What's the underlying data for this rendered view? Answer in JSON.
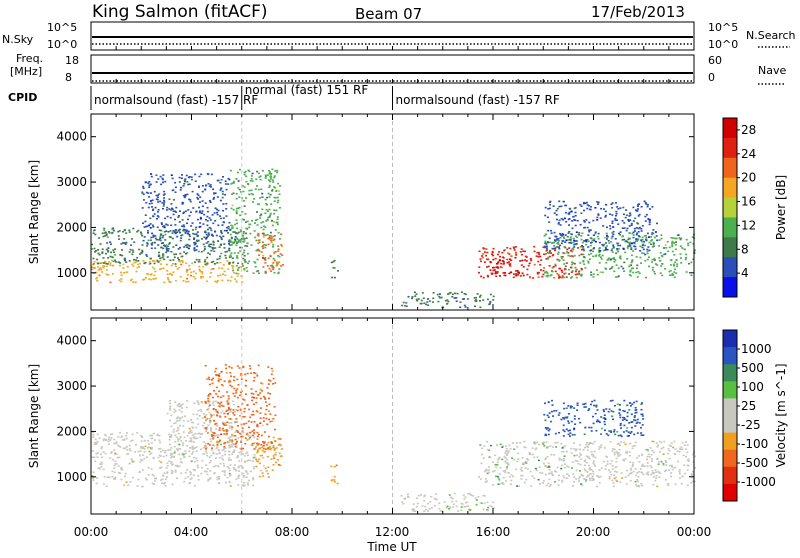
{
  "header": {
    "station": "King Salmon (fitACF)",
    "beam": "Beam 07",
    "date": "17/Feb/2013"
  },
  "nsky_panel": {
    "left_label": "N.Sky",
    "right_label": "N.Search",
    "left_ticks": [
      "10^5",
      "10^0"
    ],
    "right_ticks": [
      "10^5",
      "10^0"
    ]
  },
  "freq_panel": {
    "left_label_1": "Freq.",
    "left_label_2": "[MHz]",
    "right_label": "Nave",
    "left_ticks": [
      "18",
      "8"
    ],
    "right_ticks": [
      "60",
      "0"
    ]
  },
  "cpid": {
    "label": "CPID",
    "segments": [
      {
        "start_hour": 0,
        "end_hour": 6,
        "text": "normalsound (fast) -157 RF"
      },
      {
        "start_hour": 6,
        "end_hour": 12,
        "text": "normal (fast) 151 RF"
      },
      {
        "start_hour": 12,
        "end_hour": 24,
        "text": "normalsound (fast) -157 RF"
      }
    ]
  },
  "x_axis": {
    "label": "Time UT",
    "ticks": [
      "00:00",
      "04:00",
      "08:00",
      "12:00",
      "16:00",
      "20:00",
      "00:00"
    ],
    "range_hours": [
      0,
      24
    ]
  },
  "colors": {
    "power": [
      "#0a10e8",
      "#2a4fb8",
      "#3f7a4a",
      "#4caf50",
      "#b5d23a",
      "#f5a623",
      "#f0641e",
      "#e02010",
      "#d00000"
    ],
    "velocity": [
      "#1a2fb0",
      "#2a55c0",
      "#3a8a5a",
      "#58c040",
      "#c8c8c0",
      "#c8c8c0",
      "#f0a020",
      "#f06820",
      "#e03010",
      "#e00000"
    ]
  },
  "chart_data": [
    {
      "type": "heatmap",
      "title": "",
      "ylabel": "Slant Range [km]",
      "xlabel": "",
      "x_range_hours": [
        0,
        24
      ],
      "ylim": [
        180,
        4500
      ],
      "yticks": [
        1000,
        2000,
        3000,
        4000
      ],
      "colorbar": {
        "label": "Power [dB]",
        "ticks": [
          "4",
          "8",
          "12",
          "16",
          "20",
          "24",
          "28"
        ],
        "range": [
          0,
          30
        ]
      },
      "regions": [
        {
          "t0": 0.0,
          "t1": 6.2,
          "r0": 800,
          "r1": 1300,
          "value": 18
        },
        {
          "t0": 0.0,
          "t1": 6.2,
          "r0": 1200,
          "r1": 2000,
          "value": 9
        },
        {
          "t0": 2.0,
          "t1": 5.5,
          "r0": 1500,
          "r1": 3200,
          "value": 6
        },
        {
          "t0": 5.5,
          "t1": 7.5,
          "r0": 1000,
          "r1": 3300,
          "value": 10
        },
        {
          "t0": 6.6,
          "t1": 7.6,
          "r0": 1000,
          "r1": 1900,
          "value": 20
        },
        {
          "t0": 9.5,
          "t1": 9.8,
          "r0": 900,
          "r1": 1300,
          "value": 8
        },
        {
          "t0": 12.3,
          "t1": 16.0,
          "r0": 250,
          "r1": 600,
          "value": 7
        },
        {
          "t0": 15.4,
          "t1": 19.5,
          "r0": 900,
          "r1": 1600,
          "value": 24
        },
        {
          "t0": 15.8,
          "t1": 17.5,
          "r0": 950,
          "r1": 1350,
          "value": 28
        },
        {
          "t0": 18.0,
          "t1": 24.0,
          "r0": 900,
          "r1": 1900,
          "value": 10
        },
        {
          "t0": 18.0,
          "t1": 22.5,
          "r0": 1500,
          "r1": 2600,
          "value": 5
        }
      ]
    },
    {
      "type": "heatmap",
      "title": "",
      "ylabel": "Slant Range [km]",
      "xlabel": "Time UT",
      "x_range_hours": [
        0,
        24
      ],
      "ylim": [
        180,
        4500
      ],
      "yticks": [
        1000,
        2000,
        3000,
        4000
      ],
      "colorbar": {
        "label": "Velocity [m s^-1]",
        "ticks": [
          "1000",
          "500",
          "100",
          "25",
          "-25",
          "-100",
          "-500",
          "-1000"
        ],
        "range": [
          -1000,
          1000
        ]
      },
      "regions": [
        {
          "t0": 0.0,
          "t1": 6.5,
          "r0": 800,
          "r1": 2000,
          "value": 0
        },
        {
          "t0": 3.0,
          "t1": 5.8,
          "r0": 1500,
          "r1": 2700,
          "value": 0
        },
        {
          "t0": 4.5,
          "t1": 7.3,
          "r0": 1600,
          "r1": 3500,
          "value": -400
        },
        {
          "t0": 6.5,
          "t1": 7.6,
          "r0": 1000,
          "r1": 1900,
          "value": -300
        },
        {
          "t0": 9.5,
          "t1": 9.8,
          "r0": 800,
          "r1": 1300,
          "value": -300
        },
        {
          "t0": 12.3,
          "t1": 16.0,
          "r0": 250,
          "r1": 650,
          "value": 150
        },
        {
          "t0": 15.4,
          "t1": 20.0,
          "r0": 800,
          "r1": 1800,
          "value": 200
        },
        {
          "t0": 18.0,
          "t1": 22.0,
          "r0": 1900,
          "r1": 2700,
          "value": 600
        },
        {
          "t0": 19.5,
          "t1": 24.0,
          "r0": 800,
          "r1": 1800,
          "value": 0
        }
      ]
    }
  ]
}
